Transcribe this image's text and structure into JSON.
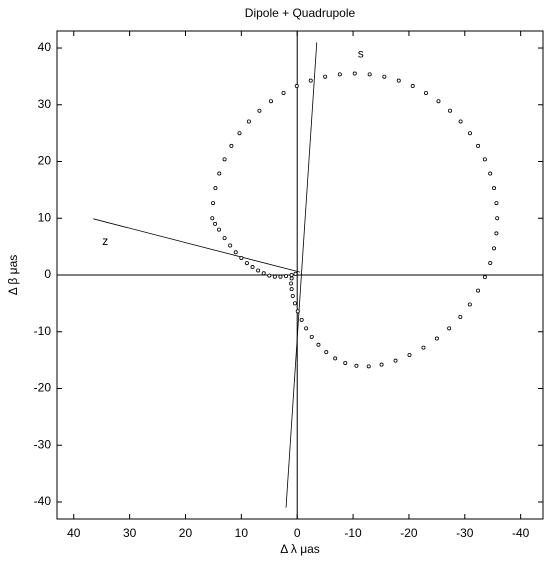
{
  "chart_data": {
    "type": "scatter",
    "title": "Dipole + Quadrupole",
    "xlabel": "Δ λ   μas",
    "ylabel": "Δ β   μas",
    "xlim": [
      43,
      -44
    ],
    "ylim": [
      -43,
      43
    ],
    "xticks": [
      40,
      30,
      20,
      10,
      0,
      -10,
      -20,
      -30,
      -40
    ],
    "yticks": [
      -40,
      -30,
      -20,
      -10,
      0,
      10,
      20,
      30,
      40
    ],
    "grid": false,
    "zero_lines": true,
    "color": "#000000",
    "x": [
      0.3,
      1,
      2,
      3,
      4,
      5,
      6,
      7,
      8,
      9,
      10,
      11,
      12,
      13,
      14,
      14.7,
      15.2,
      15.06,
      14.64,
      13.95,
      13.0,
      11.78,
      10.33,
      8.65,
      6.76,
      4.69,
      2.45,
      0.08,
      -2.42,
      -5.0,
      -7.63,
      -10.3,
      -12.97,
      -15.6,
      -18.18,
      -20.68,
      -23.05,
      -25.29,
      -27.36,
      -29.25,
      -30.93,
      -32.38,
      -33.6,
      -34.55,
      -35.24,
      -35.66,
      -35.8,
      -35.66,
      -35.24,
      -34.55,
      -33.6,
      -32.38,
      -30.9,
      -29.2,
      -27.2,
      -25.0,
      -22.6,
      -20.1,
      -17.6,
      -15.1,
      -12.8,
      -10.6,
      -8.6,
      -6.8,
      -5.2,
      -3.8,
      -2.6,
      -1.6,
      -0.8,
      -0.1,
      0.4,
      0.8,
      1.0,
      1.1,
      1.0
    ],
    "y": [
      0.2,
      0,
      -0.2,
      -0.3,
      -0.3,
      -0.1,
      0.3,
      0.8,
      1.4,
      2.1,
      3,
      4,
      5.2,
      6.5,
      8,
      9,
      10,
      12.67,
      15.3,
      17.88,
      20.38,
      22.75,
      24.99,
      27.06,
      28.95,
      30.63,
      32.08,
      33.3,
      34.25,
      34.94,
      35.36,
      35.5,
      35.36,
      34.94,
      34.25,
      33.3,
      32.08,
      30.63,
      28.95,
      27.06,
      24.99,
      22.75,
      20.38,
      17.88,
      15.3,
      12.67,
      10,
      7.33,
      4.7,
      2.12,
      -0.38,
      -2.75,
      -5.2,
      -7.4,
      -9.4,
      -11.2,
      -12.8,
      -14.1,
      -15.1,
      -15.8,
      -16.1,
      -16.0,
      -15.5,
      -14.7,
      -13.6,
      -12.3,
      -10.9,
      -9.4,
      -7.9,
      -6.4,
      -5.0,
      -3.7,
      -2.5,
      -1.5,
      -0.6
    ],
    "reference_lines": [
      {
        "label": "s",
        "x": [
          -3.5,
          2.0
        ],
        "y": [
          41,
          -41
        ]
      },
      {
        "label": "z",
        "x": [
          36.5,
          -0.5
        ],
        "y": [
          9.9,
          0.5
        ]
      }
    ]
  }
}
